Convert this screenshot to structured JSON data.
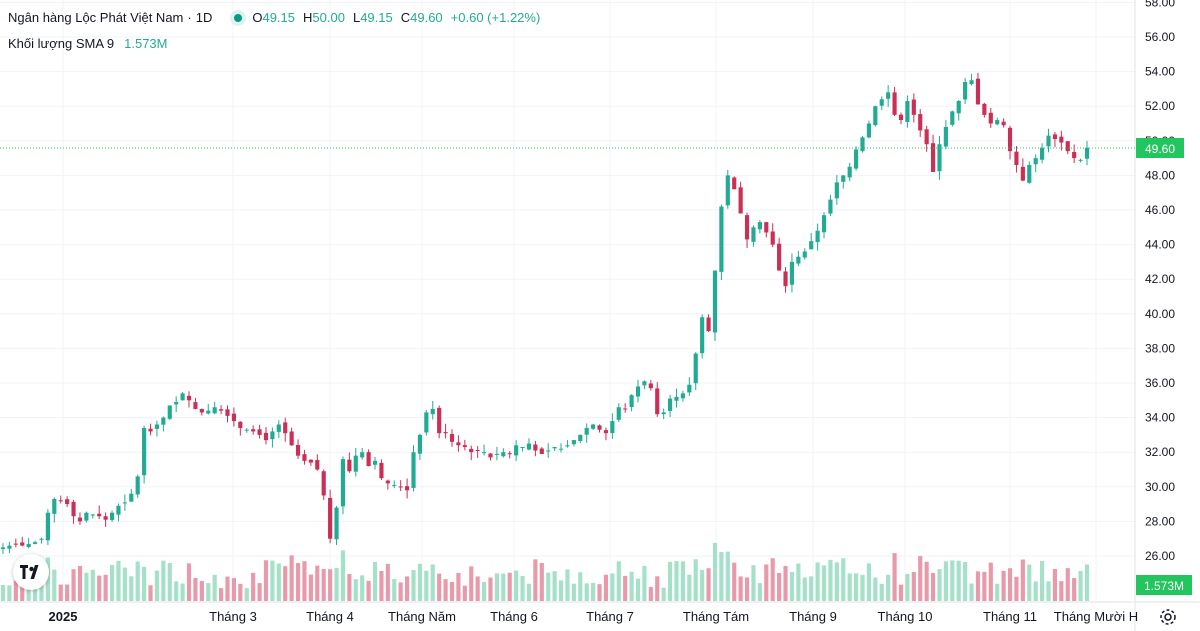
{
  "legend": {
    "symbol": "Ngân hàng Lộc Phát Việt Nam",
    "interval": "1D",
    "open_key": "O",
    "open": "49.15",
    "high_key": "H",
    "high": "50.00",
    "low_key": "L",
    "low": "49.15",
    "close_key": "C",
    "close": "49.60",
    "change": "+0.60 (+1.22%)",
    "volume_name": "Khối lượng SMA 9",
    "volume_value": "1.573M"
  },
  "price_label": "49.60",
  "volume_label": "1.573M",
  "colors": {
    "up": "#22ab94",
    "down": "#cc2f55",
    "vol_up": "#a5e0c9",
    "vol_down": "#e89aab",
    "label_green": "#22c55e"
  },
  "chart_data": {
    "type": "candlestick",
    "y_ticks": [
      "58.00",
      "56.00",
      "54.00",
      "52.00",
      "50.00",
      "48.00",
      "46.00",
      "44.00",
      "42.00",
      "40.00",
      "38.00",
      "36.00",
      "34.00",
      "32.00",
      "30.00",
      "28.00",
      "26.00"
    ],
    "ylim": [
      25.0,
      58.2
    ],
    "x_ticks": [
      "2025",
      "Tháng 3",
      "Tháng 4",
      "Tháng Năm",
      "Tháng 6",
      "Tháng 7",
      "Tháng Tám",
      "Tháng 9",
      "Tháng 10",
      "Tháng 11",
      "Tháng Mười H"
    ],
    "last_price": 49.6,
    "last_volume": "1.573M",
    "close_series": [
      26.5,
      26.6,
      26.7,
      26.6,
      26.7,
      26.8,
      27.0,
      28.5,
      29.3,
      29.2,
      29.0,
      28.3,
      28.0,
      28.5,
      28.4,
      28.3,
      28.1,
      28.5,
      28.9,
      29.1,
      29.6,
      30.6,
      33.4,
      33.2,
      33.6,
      34.0,
      34.7,
      34.9,
      35.4,
      35.0,
      34.5,
      34.3,
      34.4,
      34.6,
      34.4,
      34.1,
      33.8,
      33.4,
      33.3,
      33.2,
      33.0,
      32.7,
      33.2,
      33.6,
      33.1,
      32.4,
      31.8,
      31.5,
      31.4,
      31.0,
      29.5,
      27.0,
      28.8,
      31.6,
      30.9,
      31.8,
      32.0,
      31.2,
      31.5,
      30.5,
      30.2,
      30.1,
      30.0,
      29.8,
      32.0,
      33.0,
      34.3,
      34.5,
      33.1,
      33.1,
      32.6,
      32.4,
      32.3,
      32.0,
      32.1,
      32.0,
      31.7,
      31.9,
      32.0,
      31.9,
      32.4,
      32.3,
      32.5,
      32.1,
      31.9,
      32.1,
      32.3,
      32.2,
      32.4,
      32.7,
      33.0,
      33.4,
      33.6,
      33.3,
      33.1,
      33.8,
      34.6,
      34.5,
      35.3,
      35.8,
      36.1,
      35.7,
      34.2,
      34.3,
      35.1,
      35.2,
      35.4,
      35.9,
      37.7,
      39.8,
      39.0,
      42.5,
      46.2,
      48.0,
      47.2,
      45.8,
      44.3,
      45.0,
      45.3,
      44.7,
      44.0,
      42.5,
      41.6,
      43.0,
      43.3,
      43.6,
      44.2,
      44.8,
      45.7,
      46.6,
      47.6,
      48.0,
      48.5,
      49.5,
      50.2,
      51.0,
      52.0,
      52.4,
      52.8,
      51.5,
      51.2,
      52.3,
      51.5,
      50.6,
      49.8,
      48.2,
      49.8,
      50.8,
      51.7,
      52.3,
      53.4,
      53.5,
      52.1,
      51.5,
      51.0,
      51.2,
      50.9,
      49.4,
      48.6,
      47.7,
      48.6,
      49.0,
      49.6,
      50.3,
      50.1,
      49.9,
      49.4,
      49.0,
      48.9,
      49.6
    ],
    "note_series": "approximate daily closes read off the price axis"
  }
}
